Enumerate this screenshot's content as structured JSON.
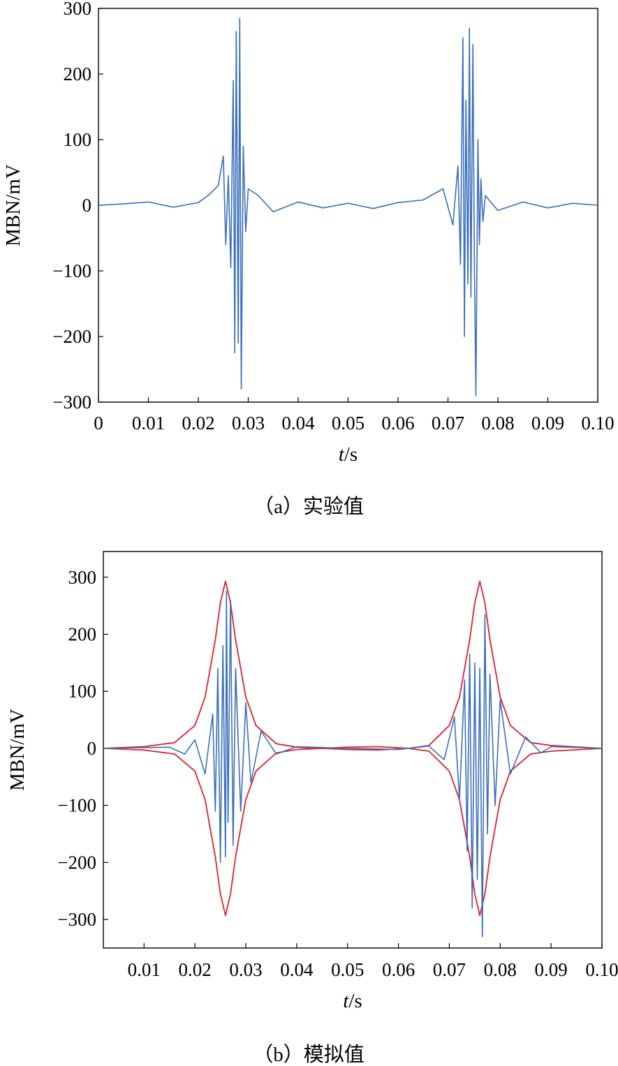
{
  "chart_data": [
    {
      "type": "line",
      "caption": "（a）实验值",
      "xlabel_italic": "t",
      "xlabel_unit": "/s",
      "ylabel": "MBN/mV",
      "xlim": [
        0,
        0.1
      ],
      "ylim": [
        -300,
        300
      ],
      "x_ticks": [
        "0",
        "0.01",
        "0.02",
        "0.03",
        "0.04",
        "0.05",
        "0.06",
        "0.07",
        "0.08",
        "0.09",
        "0.10"
      ],
      "y_ticks": [
        "300",
        "200",
        "100",
        "0",
        "−100",
        "−200",
        "−300"
      ],
      "colors": {
        "signal": "#3a6fba",
        "envelope": "#e0202a"
      },
      "series": [
        {
          "role": "signal",
          "x": [
            0,
            0.005,
            0.01,
            0.015,
            0.02,
            0.022,
            0.024,
            0.025,
            0.0255,
            0.026,
            0.0265,
            0.027,
            0.0273,
            0.0276,
            0.028,
            0.0283,
            0.0286,
            0.029,
            0.0295,
            0.03,
            0.032,
            0.035,
            0.04,
            0.045,
            0.05,
            0.055,
            0.06,
            0.065,
            0.069,
            0.071,
            0.072,
            0.0725,
            0.073,
            0.0733,
            0.0736,
            0.074,
            0.0743,
            0.0746,
            0.075,
            0.0753,
            0.0756,
            0.076,
            0.0763,
            0.0766,
            0.077,
            0.0775,
            0.078,
            0.08,
            0.085,
            0.09,
            0.095,
            0.1
          ],
          "y": [
            0,
            2,
            5,
            -3,
            4,
            15,
            30,
            75,
            -60,
            45,
            -95,
            190,
            -225,
            265,
            -210,
            285,
            -280,
            90,
            -40,
            25,
            15,
            -10,
            5,
            -4,
            3,
            -5,
            4,
            8,
            25,
            -30,
            60,
            -90,
            255,
            -200,
            160,
            -120,
            270,
            -140,
            245,
            -90,
            -290,
            100,
            -60,
            40,
            -25,
            15,
            10,
            -8,
            5,
            -4,
            3,
            0
          ]
        }
      ]
    },
    {
      "type": "line",
      "caption": "（b）模拟值",
      "xlabel_italic": "t",
      "xlabel_unit": "/s",
      "ylabel": "MBN/mV",
      "xlim": [
        0.002,
        0.1
      ],
      "ylim": [
        -350,
        345
      ],
      "x_ticks": [
        "0.01",
        "0.02",
        "0.03",
        "0.04",
        "0.05",
        "0.06",
        "0.07",
        "0.08",
        "0.09",
        "0.10"
      ],
      "y_ticks": [
        "300",
        "200",
        "100",
        "0",
        "−100",
        "−200",
        "−300"
      ],
      "colors": {
        "signal": "#3a6fba",
        "envelope": "#e0202a"
      },
      "series": [
        {
          "role": "envelope",
          "x": [
            0.002,
            0.01,
            0.016,
            0.02,
            0.022,
            0.024,
            0.025,
            0.026,
            0.027,
            0.028,
            0.03,
            0.032,
            0.036,
            0.04,
            0.05,
            0.056,
            0.062,
            0.066,
            0.07,
            0.072,
            0.074,
            0.075,
            0.076,
            0.077,
            0.078,
            0.08,
            0.082,
            0.086,
            0.09,
            0.094,
            0.1
          ],
          "y": [
            0,
            3,
            10,
            40,
            90,
            190,
            255,
            293,
            255,
            190,
            90,
            40,
            8,
            2,
            -2,
            -3,
            0,
            5,
            40,
            90,
            190,
            255,
            293,
            255,
            190,
            90,
            40,
            10,
            5,
            3,
            0
          ]
        },
        {
          "role": "envelope",
          "x": [
            0.002,
            0.01,
            0.016,
            0.02,
            0.022,
            0.024,
            0.025,
            0.026,
            0.027,
            0.028,
            0.03,
            0.032,
            0.036,
            0.04,
            0.05,
            0.056,
            0.062,
            0.066,
            0.07,
            0.072,
            0.074,
            0.075,
            0.076,
            0.077,
            0.078,
            0.08,
            0.082,
            0.086,
            0.09,
            0.094,
            0.1
          ],
          "y": [
            0,
            -3,
            -10,
            -40,
            -90,
            -190,
            -255,
            -293,
            -255,
            -190,
            -90,
            -40,
            -8,
            -2,
            2,
            3,
            0,
            -5,
            -40,
            -90,
            -190,
            -255,
            -293,
            -255,
            -190,
            -90,
            -40,
            -10,
            -5,
            -3,
            0
          ]
        },
        {
          "role": "signal",
          "x": [
            0.002,
            0.015,
            0.018,
            0.02,
            0.022,
            0.0235,
            0.024,
            0.0245,
            0.025,
            0.0255,
            0.026,
            0.0262,
            0.0265,
            0.027,
            0.0275,
            0.028,
            0.029,
            0.03,
            0.031,
            0.033,
            0.036,
            0.04,
            0.05,
            0.06,
            0.066,
            0.069,
            0.071,
            0.072,
            0.073,
            0.0735,
            0.074,
            0.0745,
            0.075,
            0.0755,
            0.076,
            0.0765,
            0.077,
            0.0775,
            0.078,
            0.079,
            0.08,
            0.082,
            0.085,
            0.088,
            0.09,
            0.093,
            0.096,
            0.1
          ],
          "y": [
            0,
            2,
            -10,
            15,
            -45,
            60,
            -110,
            140,
            -200,
            180,
            -190,
            275,
            -130,
            260,
            -170,
            140,
            -110,
            80,
            -60,
            30,
            -10,
            3,
            0,
            -2,
            4,
            -20,
            55,
            -90,
            120,
            -180,
            165,
            -280,
            150,
            -230,
            140,
            -330,
            235,
            -150,
            130,
            -100,
            85,
            -45,
            20,
            -8,
            3,
            2,
            1,
            0
          ]
        }
      ]
    }
  ]
}
